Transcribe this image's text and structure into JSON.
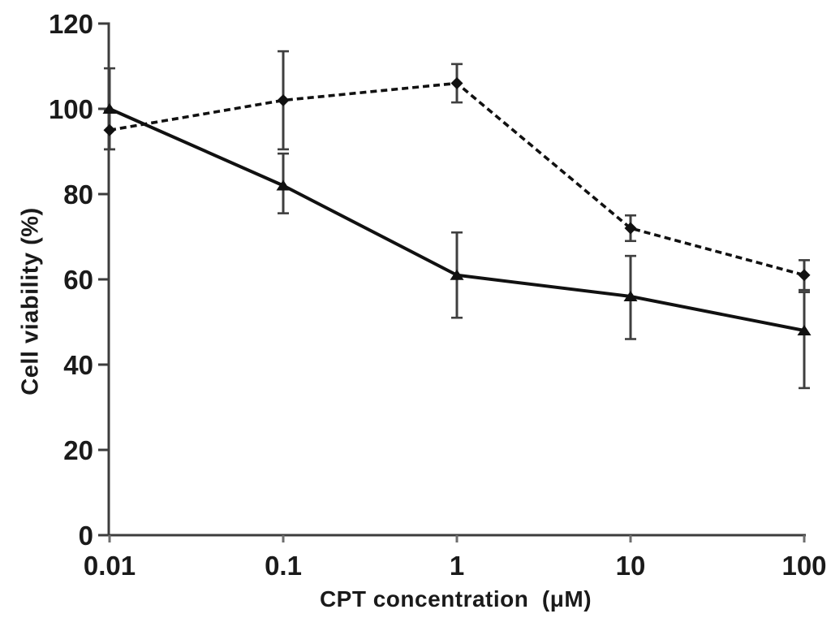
{
  "chart_data": {
    "type": "line",
    "title": "",
    "xlabel": "CPT concentration  (μM)",
    "ylabel": "Cell viability (%)",
    "x_scale": "log10",
    "xlim": [
      0.01,
      100
    ],
    "ylim": [
      0,
      120
    ],
    "grid": false,
    "legend": "none",
    "x_ticks": [
      0.01,
      0.1,
      1,
      10,
      100
    ],
    "x_tick_labels": [
      "0.01",
      "0.1",
      "1",
      "10",
      "100"
    ],
    "y_ticks": [
      0,
      20,
      40,
      60,
      80,
      100,
      120
    ],
    "y_tick_labels": [
      "0",
      "20",
      "40",
      "60",
      "80",
      "100",
      "120"
    ],
    "series": [
      {
        "name": "dashed-diamond-series",
        "marker": "diamond",
        "line_style": "dashed",
        "color": "#111111",
        "x": [
          0.01,
          0.1,
          1,
          10,
          100
        ],
        "y": [
          95,
          102,
          106,
          72,
          61
        ],
        "err": [
          [
            4.5,
            4.5
          ],
          [
            11.5,
            11.5
          ],
          [
            4.5,
            4.5
          ],
          [
            3,
            3
          ],
          [
            3.5,
            3.5
          ]
        ]
      },
      {
        "name": "solid-triangle-series",
        "marker": "triangle",
        "line_style": "solid",
        "color": "#111111",
        "x": [
          0.01,
          0.1,
          1,
          10,
          100
        ],
        "y": [
          100,
          82,
          61,
          56,
          48
        ],
        "err": [
          [
            9.5,
            9.5
          ],
          [
            6.5,
            7.5
          ],
          [
            10,
            10
          ],
          [
            10,
            9.5
          ],
          [
            13.5,
            9
          ]
        ]
      }
    ],
    "style": {
      "axis_color": "#3c3c3c",
      "tick_color": "#6e6e6e",
      "label_color": "#1a1a1a",
      "error_bar_color": "#3f3f3f",
      "background": "#ffffff"
    }
  }
}
